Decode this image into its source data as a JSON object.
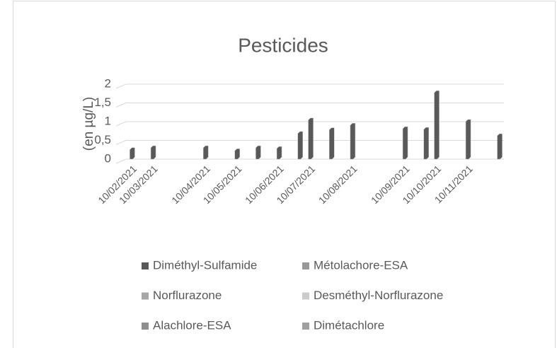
{
  "chart_data": {
    "type": "bar",
    "title": "Pesticides",
    "y_label": "(en µg/L)",
    "categories": [
      "10/02/2021",
      null,
      "10/03/2021",
      null,
      null,
      null,
      null,
      "10/04/2021",
      null,
      null,
      "10/05/2021",
      null,
      null,
      null,
      "10/06/2021",
      null,
      null,
      "10/07/2021",
      null,
      null,
      null,
      "10/08/2021",
      null,
      null,
      null,
      null,
      "10/09/2021",
      null,
      null,
      "10/10/2021",
      null,
      null,
      "10/11/2021",
      null,
      null,
      null
    ],
    "series": [
      {
        "name": "Diméthyl-Sulfamide",
        "color": "#595959",
        "values": [
          0.25,
          null,
          0.3,
          null,
          null,
          null,
          null,
          0.3,
          null,
          null,
          0.22,
          null,
          0.3,
          null,
          0.28,
          null,
          0.68,
          1.04,
          null,
          0.78,
          null,
          0.9,
          null,
          null,
          null,
          null,
          0.81,
          null,
          0.79,
          1.77,
          null,
          null,
          1.0,
          null,
          null,
          0.62
        ]
      },
      {
        "name": "Métolachore-ESA",
        "color": "#999999",
        "values": [
          null,
          null,
          null,
          null,
          null,
          null,
          null,
          null,
          null,
          null,
          null,
          null,
          null,
          null,
          null,
          null,
          null,
          null,
          null,
          null,
          null,
          null,
          null,
          null,
          null,
          null,
          null,
          null,
          null,
          null,
          null,
          null,
          null,
          null,
          null,
          null
        ]
      },
      {
        "name": "Norflurazone",
        "color": "#a6a6a6",
        "values": [
          null,
          null,
          null,
          null,
          null,
          null,
          null,
          null,
          null,
          null,
          null,
          null,
          null,
          null,
          null,
          null,
          null,
          null,
          null,
          null,
          null,
          null,
          null,
          null,
          null,
          null,
          null,
          null,
          null,
          null,
          null,
          null,
          null,
          null,
          null,
          null
        ]
      },
      {
        "name": "Desméthyl-Norflurazone",
        "color": "#cccccc",
        "values": [
          null,
          null,
          null,
          null,
          null,
          null,
          null,
          null,
          null,
          null,
          null,
          null,
          null,
          null,
          null,
          null,
          null,
          null,
          null,
          null,
          null,
          null,
          null,
          null,
          null,
          null,
          null,
          null,
          null,
          null,
          null,
          null,
          null,
          null,
          null,
          null
        ]
      },
      {
        "name": "Alachlore-ESA",
        "color": "#8f8f8f",
        "values": [
          null,
          null,
          null,
          null,
          null,
          null,
          null,
          null,
          null,
          null,
          null,
          null,
          null,
          null,
          null,
          null,
          null,
          null,
          null,
          null,
          null,
          null,
          null,
          null,
          null,
          null,
          null,
          null,
          null,
          null,
          null,
          null,
          null,
          null,
          null,
          null
        ]
      },
      {
        "name": "Dimétachlore",
        "color": "#a0a0a0",
        "values": [
          null,
          null,
          null,
          null,
          null,
          null,
          null,
          null,
          null,
          null,
          null,
          null,
          null,
          null,
          null,
          null,
          null,
          null,
          null,
          null,
          null,
          null,
          null,
          null,
          null,
          null,
          null,
          null,
          null,
          null,
          null,
          null,
          null,
          null,
          null,
          null
        ]
      }
    ],
    "ylim": [
      0,
      2
    ],
    "yticks": [
      0,
      {
        "value": 0.5,
        "label": "0,5"
      },
      1,
      {
        "value": 1.5,
        "label": "1,5"
      },
      2
    ],
    "grid": true,
    "legend": "bottom"
  }
}
